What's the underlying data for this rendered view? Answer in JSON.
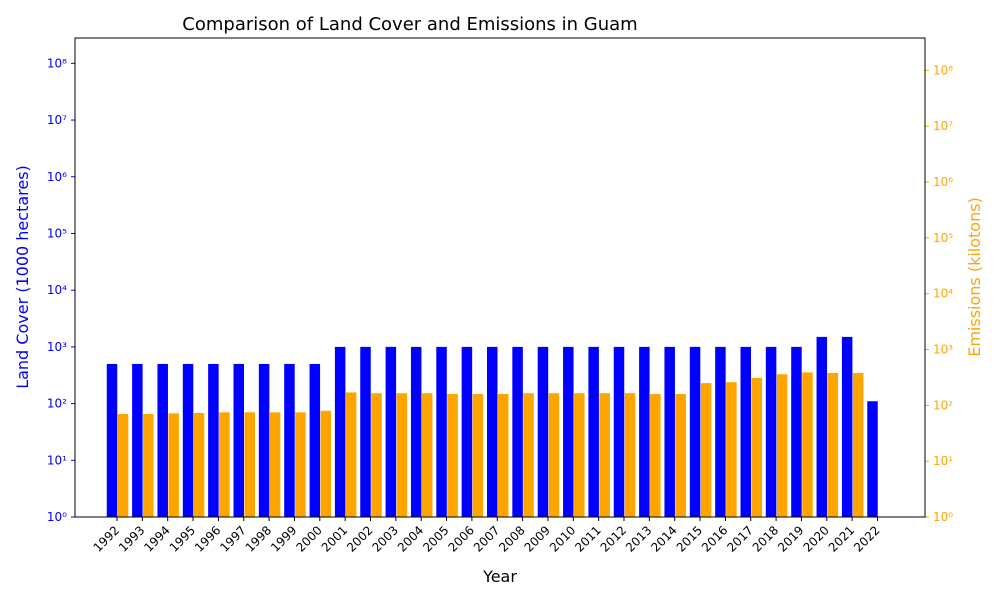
{
  "chart_data": {
    "type": "bar",
    "title": "Comparison of Land Cover and Emissions in Guam",
    "xlabel": "Year",
    "ylabel_left": "Land Cover (1000 hectares)",
    "ylabel_right": "Emissions (kilotons)",
    "yscale": "log",
    "ylim_left": [
      1,
      280000000
    ],
    "ylim_right": [
      1,
      380000000
    ],
    "categories": [
      "1992",
      "1993",
      "1994",
      "1995",
      "1996",
      "1997",
      "1998",
      "1999",
      "2000",
      "2001",
      "2002",
      "2003",
      "2004",
      "2005",
      "2006",
      "2007",
      "2008",
      "2009",
      "2010",
      "2011",
      "2012",
      "2013",
      "2014",
      "2015",
      "2016",
      "2017",
      "2018",
      "2019",
      "2020",
      "2021",
      "2022"
    ],
    "yticks_left": [
      {
        "value": 1,
        "label": "10⁰"
      },
      {
        "value": 10,
        "label": "10¹"
      },
      {
        "value": 100,
        "label": "10²"
      },
      {
        "value": 1000,
        "label": "10³"
      },
      {
        "value": 10000,
        "label": "10⁴"
      },
      {
        "value": 100000,
        "label": "10⁵"
      },
      {
        "value": 1000000,
        "label": "10⁶"
      },
      {
        "value": 10000000,
        "label": "10⁷"
      },
      {
        "value": 100000000,
        "label": "10⁸"
      }
    ],
    "yticks_right": [
      {
        "value": 1,
        "label": "10⁰"
      },
      {
        "value": 10,
        "label": "10¹"
      },
      {
        "value": 100,
        "label": "10²"
      },
      {
        "value": 1000,
        "label": "10³"
      },
      {
        "value": 10000,
        "label": "10⁴"
      },
      {
        "value": 100000,
        "label": "10⁵"
      },
      {
        "value": 1000000,
        "label": "10⁶"
      },
      {
        "value": 10000000,
        "label": "10⁷"
      },
      {
        "value": 100000000,
        "label": "10⁸"
      }
    ],
    "series": [
      {
        "axis": "left",
        "color": "#0000ff",
        "values": [
          500,
          500,
          500,
          500,
          500,
          500,
          500,
          500,
          500,
          1000,
          1000,
          1000,
          1000,
          1000,
          1000,
          1000,
          1000,
          1000,
          1000,
          1000,
          1000,
          1000,
          1000,
          1000,
          1000,
          1000,
          1000,
          1000,
          1500,
          1500,
          110
        ]
      },
      {
        "axis": "right",
        "color": "#ffa500",
        "values": [
          70,
          70,
          72,
          73,
          75,
          75,
          75,
          75,
          80,
          170,
          165,
          165,
          165,
          160,
          160,
          160,
          165,
          165,
          165,
          165,
          165,
          160,
          160,
          250,
          260,
          310,
          360,
          390,
          380,
          380,
          null
        ]
      }
    ],
    "left_axis_color": "#0000ff",
    "right_axis_color": "#ffa500",
    "grid": false,
    "legend": "none"
  }
}
